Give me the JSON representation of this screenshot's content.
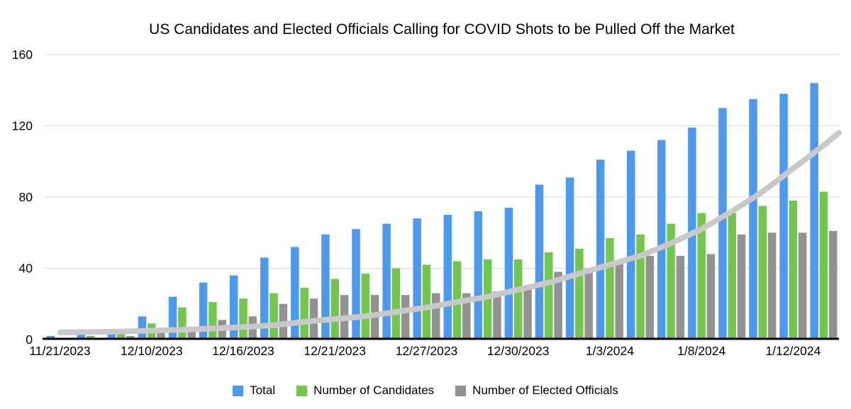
{
  "chart_data": {
    "type": "bar",
    "title": "US Candidates and Elected Officials Calling for COVID Shots to be Pulled Off the Market",
    "categories": [
      "11/21/2023",
      "",
      "",
      "12/10/2023",
      "",
      "",
      "12/16/2023",
      "",
      "",
      "12/21/2023",
      "",
      "",
      "12/27/2023",
      "",
      "",
      "12/30/2023",
      "",
      "",
      "1/3/2024",
      "",
      "",
      "1/8/2024",
      "",
      "",
      "1/12/2024",
      ""
    ],
    "series": [
      {
        "name": "Total",
        "color": "#4c9af0",
        "values": [
          2,
          3,
          5,
          13,
          24,
          32,
          36,
          46,
          52,
          59,
          62,
          65,
          68,
          70,
          72,
          74,
          87,
          91,
          101,
          106,
          112,
          119,
          130,
          135,
          138,
          144
        ]
      },
      {
        "name": "Number of Candidates",
        "color": "#72c64c",
        "values": [
          1,
          2,
          3,
          9,
          18,
          21,
          23,
          26,
          29,
          34,
          37,
          40,
          42,
          44,
          45,
          45,
          49,
          51,
          57,
          59,
          65,
          71,
          71,
          75,
          78,
          83
        ]
      },
      {
        "name": "Number of Elected Officials",
        "color": "#929292",
        "values": [
          1,
          1,
          2,
          4,
          6,
          11,
          13,
          20,
          23,
          25,
          25,
          25,
          26,
          26,
          27,
          29,
          38,
          40,
          44,
          47,
          47,
          48,
          59,
          60,
          60,
          61
        ]
      }
    ],
    "trendline": {
      "color": "#c9c9c9",
      "values": [
        4,
        4.2,
        4.5,
        5,
        5.5,
        6.2,
        7,
        8,
        10,
        11.5,
        13,
        15.5,
        18,
        21,
        24,
        28,
        32,
        37,
        42,
        47,
        54,
        62,
        72,
        83,
        96,
        109
      ],
      "end_value": 116
    },
    "y_ticks": [
      0,
      40,
      80,
      120,
      160
    ],
    "ylim": [
      0,
      160
    ],
    "grid": true,
    "legend_position": "bottom",
    "colors": {
      "gridline": "#dcdcdc",
      "axis_line": "#000000",
      "text": "#000000"
    }
  }
}
